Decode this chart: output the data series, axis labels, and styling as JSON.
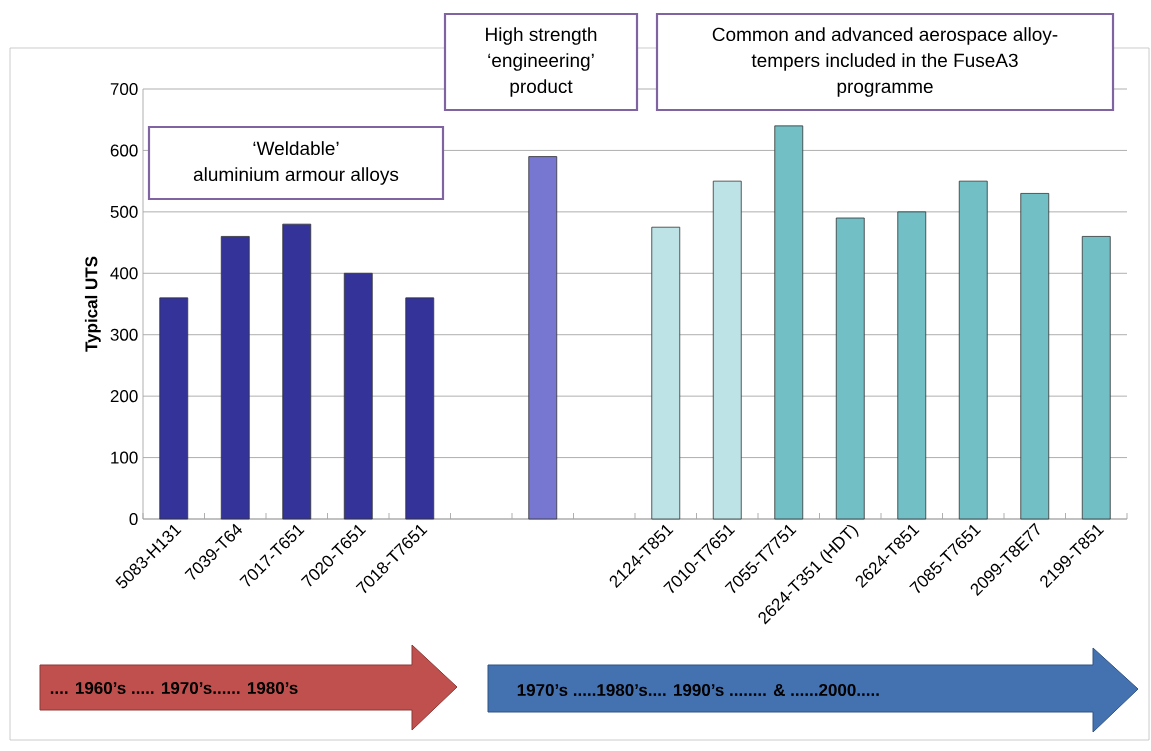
{
  "chart_data": {
    "type": "bar",
    "ylabel": "Typical UTS",
    "categories": [
      "5083-H131",
      "7039-T64",
      "7017-T651",
      "7020-T651",
      "7018-T7651",
      null,
      null,
      null,
      "2124-T851",
      "7010-T7651",
      "7055-T7751",
      "2624-T351 (HDT)",
      "2624-T851",
      "7085-T7651",
      "2099-T8E77",
      "2199-T851"
    ],
    "values": [
      360,
      460,
      480,
      400,
      360,
      null,
      590,
      null,
      475,
      550,
      640,
      490,
      500,
      550,
      530,
      460
    ],
    "colors": [
      "#333399",
      "#333399",
      "#333399",
      "#333399",
      "#333399",
      null,
      "#7777d1",
      null,
      "#bde3e6",
      "#bde3e6",
      "#72bfc6",
      "#72bfc6",
      "#72bfc6",
      "#72bfc6",
      "#72bfc6",
      "#72bfc6"
    ],
    "ylim": [
      0,
      700
    ],
    "yticks": [
      0,
      100,
      200,
      300,
      400,
      500,
      600,
      700
    ],
    "grid": "y",
    "annotations": [
      "‘Weldable’\naluminium armour alloys",
      "High strength\n‘engineering’\nproduct",
      "Common and advanced aerospace alloy-\ntempers included in the FuseA3\nprogramme",
      ".... 1960’s .....   1970’s......   1980’s",
      "1970’s .....1980’s.... 1990’s ........ & ......2000....."
    ]
  }
}
